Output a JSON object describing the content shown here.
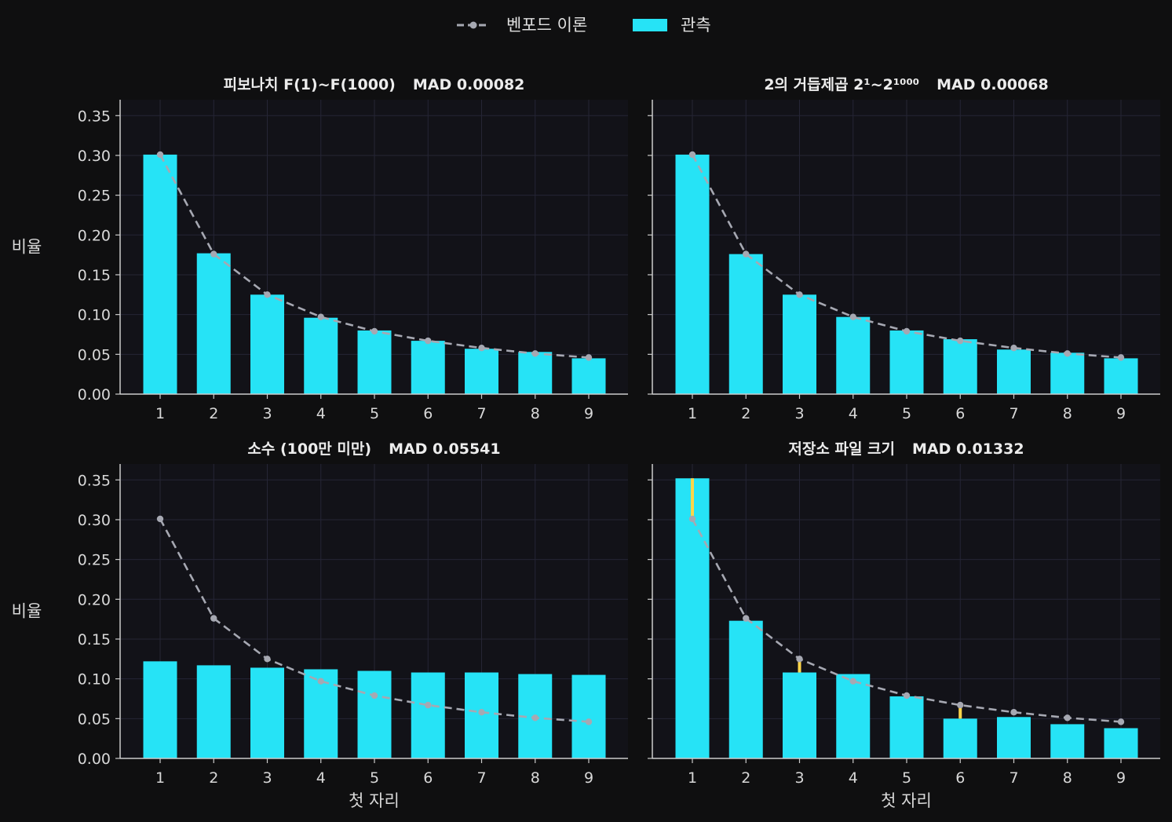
{
  "legend": {
    "theory_label": "벤포드 이론",
    "observed_label": "관측"
  },
  "colors": {
    "background": "#0f0f10",
    "plot_background": "#121218",
    "bar": "#26e3f6",
    "theory_line": "#a6a8b2",
    "deviation": "#ffd54a",
    "grid": "#252535",
    "axis": "#cccccc"
  },
  "chart_data": [
    {
      "type": "bar",
      "title": "피보나치 F(1)~F(1000)",
      "mad_label": "MAD 0.00082",
      "categories": [
        "1",
        "2",
        "3",
        "4",
        "5",
        "6",
        "7",
        "8",
        "9"
      ],
      "series": [
        {
          "name": "관측",
          "values": [
            0.301,
            0.177,
            0.125,
            0.096,
            0.08,
            0.067,
            0.057,
            0.053,
            0.045
          ]
        },
        {
          "name": "벤포드 이론",
          "values": [
            0.301,
            0.176,
            0.125,
            0.097,
            0.079,
            0.067,
            0.058,
            0.051,
            0.046
          ]
        }
      ],
      "xlabel": "",
      "ylabel": "비율",
      "ylim": [
        0,
        0.37
      ],
      "yticks": [
        "0.00",
        "0.05",
        "0.10",
        "0.15",
        "0.20",
        "0.25",
        "0.30",
        "0.35"
      ],
      "highlight_deviations": false
    },
    {
      "type": "bar",
      "title": "2의 거듭제곱 2¹~2¹⁰⁰⁰",
      "mad_label": "MAD 0.00068",
      "categories": [
        "1",
        "2",
        "3",
        "4",
        "5",
        "6",
        "7",
        "8",
        "9"
      ],
      "series": [
        {
          "name": "관측",
          "values": [
            0.301,
            0.176,
            0.125,
            0.097,
            0.08,
            0.069,
            0.056,
            0.052,
            0.045
          ]
        },
        {
          "name": "벤포드 이론",
          "values": [
            0.301,
            0.176,
            0.125,
            0.097,
            0.079,
            0.067,
            0.058,
            0.051,
            0.046
          ]
        }
      ],
      "xlabel": "",
      "ylabel": "",
      "ylim": [
        0,
        0.37
      ],
      "yticks": [
        "",
        "",
        "",
        "",
        "",
        "",
        "",
        ""
      ],
      "highlight_deviations": false
    },
    {
      "type": "bar",
      "title": "소수 (100만 미만)",
      "mad_label": "MAD 0.05541",
      "categories": [
        "1",
        "2",
        "3",
        "4",
        "5",
        "6",
        "7",
        "8",
        "9"
      ],
      "series": [
        {
          "name": "관측",
          "values": [
            0.122,
            0.117,
            0.114,
            0.112,
            0.11,
            0.108,
            0.108,
            0.106,
            0.105
          ]
        },
        {
          "name": "벤포드 이론",
          "values": [
            0.301,
            0.176,
            0.125,
            0.097,
            0.079,
            0.067,
            0.058,
            0.051,
            0.046
          ]
        }
      ],
      "xlabel": "첫 자리",
      "ylabel": "비율",
      "ylim": [
        0,
        0.37
      ],
      "yticks": [
        "0.00",
        "0.05",
        "0.10",
        "0.15",
        "0.20",
        "0.25",
        "0.30",
        "0.35"
      ],
      "highlight_deviations": false
    },
    {
      "type": "bar",
      "title": "저장소 파일 크기",
      "mad_label": "MAD 0.01332",
      "categories": [
        "1",
        "2",
        "3",
        "4",
        "5",
        "6",
        "7",
        "8",
        "9"
      ],
      "series": [
        {
          "name": "관측",
          "values": [
            0.352,
            0.173,
            0.108,
            0.106,
            0.078,
            0.05,
            0.052,
            0.043,
            0.038
          ]
        },
        {
          "name": "벤포드 이론",
          "values": [
            0.301,
            0.176,
            0.125,
            0.097,
            0.079,
            0.067,
            0.058,
            0.051,
            0.046
          ]
        }
      ],
      "xlabel": "첫 자리",
      "ylabel": "",
      "ylim": [
        0,
        0.37
      ],
      "yticks": [
        "",
        "",
        "",
        "",
        "",
        "",
        "",
        ""
      ],
      "highlight_deviations": true
    }
  ]
}
